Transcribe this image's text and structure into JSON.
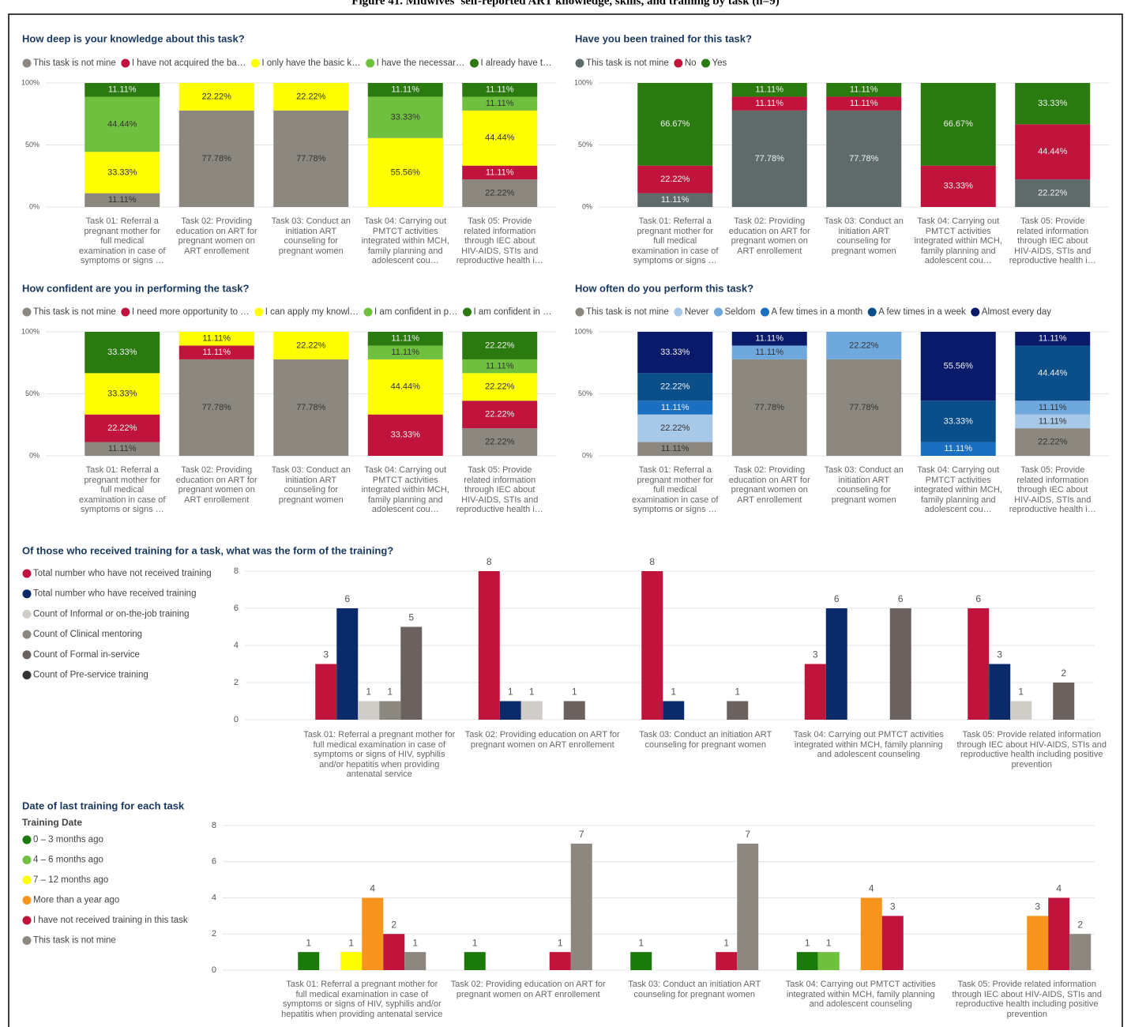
{
  "title": "Figure 41. Midwives' self-reported ART knowledge, skills, and training by task (n=9)",
  "chart_data": [
    {
      "type": "bar",
      "stacked": true,
      "title": "How deep is your knowledge about this task?",
      "categories": [
        "Task 01: Referral a pregnant mother for full medical examination in case of symptoms or signs …",
        "Task 02: Providing education on ART for pregnant women on ART enrollement",
        "Task 03: Conduct an initiation ART counseling for pregnant women",
        "Task 04: Carrying out PMTCT activities integrated within MCH, family planning and adolescent cou…",
        "Task 05: Provide related information through IEC about HIV-AIDS, STIs and reproductive health i…"
      ],
      "series": [
        {
          "name": "This task is not mine",
          "color": "#8c8880",
          "values": [
            11.11,
            77.78,
            77.78,
            null,
            22.22
          ],
          "value_labels": [
            "11.11%",
            "77.78%",
            "77.78%",
            null,
            "22.22%"
          ]
        },
        {
          "name": "I have not acquired the ba…",
          "color": "#c0143c",
          "values": [
            null,
            null,
            null,
            null,
            11.11
          ],
          "value_labels": [
            null,
            null,
            null,
            null,
            "11.11%"
          ]
        },
        {
          "name": "I only have the basic k…",
          "color": "#ffff00",
          "values": [
            33.33,
            22.22,
            22.22,
            55.56,
            44.44
          ],
          "value_labels": [
            "33.33%",
            "22.22%",
            "22.22%",
            "55.56%",
            "44.44%"
          ]
        },
        {
          "name": "I have the necessar…",
          "color": "#70c040",
          "values": [
            44.44,
            null,
            null,
            33.33,
            11.11
          ],
          "value_labels": [
            "44.44%",
            null,
            null,
            "33.33%",
            "11.11%"
          ]
        },
        {
          "name": "I already have t…",
          "color": "#2a7a10",
          "values": [
            11.11,
            null,
            null,
            11.11,
            11.11
          ],
          "value_labels": [
            "11.11%",
            null,
            null,
            "11.11%",
            "11.11%"
          ]
        }
      ],
      "ylim": [
        0,
        100
      ],
      "yticks": [
        {
          "value": 0,
          "label": "0%"
        },
        {
          "value": 50,
          "label": "50%"
        },
        {
          "value": 100,
          "label": "100%"
        }
      ],
      "grid": true
    },
    {
      "type": "bar",
      "stacked": true,
      "title": "Have you been trained for this task?",
      "categories": [
        "Task 01: Referral a pregnant mother for full medical examination in case of symptoms or signs …",
        "Task 02: Providing education on ART for pregnant women on ART enrollement",
        "Task 03: Conduct an initiation ART counseling for pregnant women",
        "Task 04: Carrying out PMTCT activities integrated within MCH, family planning and adolescent cou…",
        "Task 05: Provide related information through IEC about HIV-AIDS, STIs and reproductive health i…"
      ],
      "series": [
        {
          "name": "This task is not mine",
          "color": "#5f6b6b",
          "values": [
            11.11,
            77.78,
            77.78,
            null,
            22.22
          ],
          "value_labels": [
            "11.11%",
            "77.78%",
            "77.78%",
            null,
            "22.22%"
          ]
        },
        {
          "name": "No",
          "color": "#c0143c",
          "values": [
            22.22,
            11.11,
            11.11,
            33.33,
            44.44
          ],
          "value_labels": [
            "22.22%",
            "11.11%",
            "11.11%",
            "33.33%",
            "44.44%"
          ]
        },
        {
          "name": "Yes",
          "color": "#2a7a10",
          "values": [
            66.67,
            11.11,
            11.11,
            66.67,
            33.33
          ],
          "value_labels": [
            "66.67%",
            "11.11%",
            "11.11%",
            "66.67%",
            "33.33%"
          ]
        }
      ],
      "ylim": [
        0,
        100
      ],
      "yticks": [
        {
          "value": 0,
          "label": "0%"
        },
        {
          "value": 50,
          "label": "50%"
        },
        {
          "value": 100,
          "label": "100%"
        }
      ],
      "grid": true
    },
    {
      "type": "bar",
      "stacked": true,
      "title": "How confident are you in performing the task?",
      "categories": [
        "Task 01: Referral a pregnant mother for full medical examination in case of symptoms or signs …",
        "Task 02: Providing education on ART for pregnant women on ART enrollement",
        "Task 03: Conduct an initiation ART counseling for pregnant women",
        "Task 04: Carrying out PMTCT activities integrated within MCH, family planning and adolescent cou…",
        "Task 05: Provide related information through IEC about HIV-AIDS, STIs and reproductive health i…"
      ],
      "series": [
        {
          "name": "This task is not mine",
          "color": "#8c8880",
          "values": [
            11.11,
            77.78,
            77.78,
            null,
            22.22
          ],
          "value_labels": [
            "11.11%",
            "77.78%",
            "77.78%",
            null,
            "22.22%"
          ]
        },
        {
          "name": "I need more opportunity to …",
          "color": "#c0143c",
          "values": [
            22.22,
            11.11,
            null,
            33.33,
            22.22
          ],
          "value_labels": [
            "22.22%",
            "11.11%",
            null,
            "33.33%",
            "22.22%"
          ]
        },
        {
          "name": "I can apply my knowl…",
          "color": "#ffff00",
          "values": [
            33.33,
            11.11,
            22.22,
            44.44,
            22.22
          ],
          "value_labels": [
            "33.33%",
            "11.11%",
            "22.22%",
            "44.44%",
            "22.22%"
          ]
        },
        {
          "name": "I am confident in p…",
          "color": "#70c040",
          "values": [
            null,
            null,
            null,
            11.11,
            11.11
          ],
          "value_labels": [
            null,
            null,
            null,
            "11.11%",
            "11.11%"
          ]
        },
        {
          "name": "I am confident in …",
          "color": "#2a7a10",
          "values": [
            33.33,
            null,
            null,
            11.11,
            22.22
          ],
          "value_labels": [
            "33.33%",
            null,
            null,
            "11.11%",
            "22.22%"
          ]
        }
      ],
      "ylim": [
        0,
        100
      ],
      "yticks": [
        {
          "value": 0,
          "label": "0%"
        },
        {
          "value": 50,
          "label": "50%"
        },
        {
          "value": 100,
          "label": "100%"
        }
      ],
      "grid": true
    },
    {
      "type": "bar",
      "stacked": true,
      "title": "How often do you perform this task?",
      "categories": [
        "Task 01: Referral a pregnant mother for full medical examination in case of symptoms or signs …",
        "Task 02: Providing education on ART for pregnant women on ART enrollement",
        "Task 03: Conduct an initiation ART counseling for pregnant women",
        "Task 04: Carrying out PMTCT activities integrated within MCH, family planning and adolescent cou…",
        "Task 05: Provide related information through IEC about HIV-AIDS, STIs and reproductive health i…"
      ],
      "series": [
        {
          "name": "This task is not mine",
          "color": "#8c8880",
          "values": [
            11.11,
            77.78,
            77.78,
            null,
            22.22
          ],
          "value_labels": [
            "11.11%",
            "77.78%",
            "77.78%",
            null,
            "22.22%"
          ]
        },
        {
          "name": "Never",
          "color": "#a8c8e8",
          "values": [
            22.22,
            null,
            null,
            null,
            11.11
          ],
          "value_labels": [
            "22.22%",
            null,
            null,
            null,
            "11.11%"
          ]
        },
        {
          "name": "Seldom",
          "color": "#6fa8dc",
          "values": [
            null,
            11.11,
            22.22,
            null,
            11.11
          ],
          "value_labels": [
            null,
            "11.11%",
            "22.22%",
            null,
            "11.11%"
          ]
        },
        {
          "name": "A few times in a month",
          "color": "#1a6fc0",
          "values": [
            11.11,
            null,
            null,
            11.11,
            null
          ],
          "value_labels": [
            "11.11%",
            null,
            null,
            "11.11%",
            null
          ]
        },
        {
          "name": "A few times in a week",
          "color": "#0b4f8a",
          "values": [
            22.22,
            null,
            null,
            33.33,
            44.44
          ],
          "value_labels": [
            "22.22%",
            null,
            null,
            "33.33%",
            "44.44%"
          ]
        },
        {
          "name": "Almost every day",
          "color": "#0a1a6a",
          "values": [
            33.33,
            11.11,
            null,
            55.56,
            11.11
          ],
          "value_labels": [
            "33.33%",
            "11.11%",
            null,
            "55.56%",
            "11.11%"
          ]
        }
      ],
      "ylim": [
        0,
        100
      ],
      "yticks": [
        {
          "value": 0,
          "label": "0%"
        },
        {
          "value": 50,
          "label": "50%"
        },
        {
          "value": 100,
          "label": "100%"
        }
      ],
      "grid": true
    },
    {
      "type": "bar",
      "stacked": false,
      "title": "Of those who received training for a task, what was the form of the training?",
      "categories": [
        "Task 01: Referral a pregnant mother for full medical examination in case of symptoms or signs of HIV, syphilis and/or hepatitis when providing antenatal service",
        "Task 02: Providing education on ART for pregnant women on ART enrollement",
        "Task 03: Conduct an initiation ART counseling for pregnant women",
        "Task 04: Carrying out PMTCT activities integrated within MCH, family planning and adolescent counseling",
        "Task 05: Provide related information through IEC about HIV-AIDS, STIs and reproductive health including positive prevention"
      ],
      "series": [
        {
          "name": "Total number who have not received training",
          "color": "#c0143c",
          "values": [
            3,
            8,
            8,
            3,
            6
          ]
        },
        {
          "name": "Total number who have received training",
          "color": "#0a2a6a",
          "values": [
            6,
            1,
            1,
            6,
            3
          ]
        },
        {
          "name": "Count of Informal or on-the-job training",
          "color": "#d0ccc8",
          "values": [
            1,
            1,
            null,
            null,
            1
          ]
        },
        {
          "name": "Count of Clinical mentoring",
          "color": "#8c8880",
          "values": [
            1,
            null,
            null,
            null,
            null
          ]
        },
        {
          "name": "Count of Formal in-service",
          "color": "#6b6260",
          "values": [
            5,
            1,
            1,
            6,
            2
          ]
        },
        {
          "name": "Count of Pre-service training",
          "color": "#333333",
          "values": [
            null,
            null,
            null,
            null,
            null
          ]
        }
      ],
      "ylim": [
        0,
        8
      ],
      "yticks": [
        0,
        2,
        4,
        6,
        8
      ],
      "grid": true
    },
    {
      "type": "bar",
      "stacked": false,
      "title": "Date of last training for each task",
      "legend_title": "Training Date",
      "categories": [
        "Task 01: Referral a pregnant mother for full medical examination in case of symptoms or signs of HIV, syphilis and/or hepatitis when providing antenatal service",
        "Task 02: Providing education on ART for pregnant women on ART enrollement",
        "Task 03: Conduct an initiation ART counseling for pregnant women",
        "Task 04: Carrying out PMTCT activities integrated within MCH, family planning and adolescent counseling",
        "Task 05: Provide related information through IEC about HIV-AIDS, STIs and reproductive health including positive prevention"
      ],
      "series": [
        {
          "name": "0 – 3 months ago",
          "color": "#1a7a0a",
          "values": [
            1,
            1,
            1,
            1,
            null
          ]
        },
        {
          "name": "4 – 6 months ago",
          "color": "#70c040",
          "values": [
            null,
            null,
            null,
            1,
            null
          ]
        },
        {
          "name": "7 – 12 months ago",
          "color": "#ffff00",
          "values": [
            1,
            null,
            null,
            null,
            null
          ]
        },
        {
          "name": "More than a year ago",
          "color": "#f7941d",
          "values": [
            4,
            null,
            null,
            4,
            3
          ]
        },
        {
          "name": "I have not received training in this task",
          "color": "#c0143c",
          "values": [
            2,
            1,
            1,
            3,
            4
          ]
        },
        {
          "name": "This task is not mine",
          "color": "#8c8880",
          "values": [
            1,
            7,
            7,
            null,
            2
          ]
        }
      ],
      "ylim": [
        0,
        8
      ],
      "yticks": [
        0,
        2,
        4,
        6,
        8
      ],
      "grid": true
    }
  ]
}
